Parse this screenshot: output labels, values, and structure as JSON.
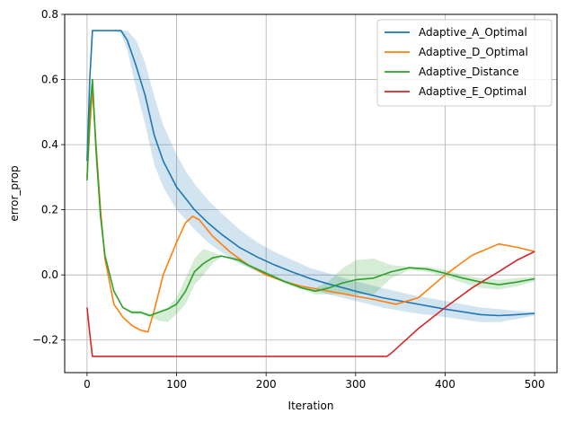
{
  "chart_data": {
    "type": "line",
    "xlabel": "Iteration",
    "ylabel": "error_prop",
    "xlim": [
      -25,
      525
    ],
    "ylim": [
      -0.3,
      0.8
    ],
    "xticks": [
      0,
      100,
      200,
      300,
      400,
      500
    ],
    "yticks": [
      -0.2,
      0.0,
      0.2,
      0.4,
      0.6,
      0.8
    ],
    "xtick_labels": [
      "0",
      "100",
      "200",
      "300",
      "400",
      "500"
    ],
    "ytick_labels": [
      "−0.2",
      "0.0",
      "0.2",
      "0.4",
      "0.6",
      "0.8"
    ],
    "grid": true,
    "legend_position": "top-right",
    "series": [
      {
        "name": "Adaptive_A_Optimal",
        "color": "#1f77b4",
        "x": [
          0,
          3,
          6,
          10,
          20,
          30,
          38,
          45,
          55,
          65,
          75,
          85,
          100,
          110,
          120,
          135,
          150,
          170,
          190,
          210,
          230,
          250,
          270,
          300,
          330,
          360,
          400,
          440,
          460,
          480,
          500
        ],
        "y": [
          0.35,
          0.6,
          0.75,
          0.75,
          0.75,
          0.75,
          0.75,
          0.72,
          0.64,
          0.55,
          0.43,
          0.35,
          0.27,
          0.235,
          0.2,
          0.16,
          0.125,
          0.085,
          0.055,
          0.03,
          0.008,
          -0.012,
          -0.028,
          -0.05,
          -0.07,
          -0.085,
          -0.105,
          -0.122,
          -0.125,
          -0.122,
          -0.118
        ],
        "band_upper": [
          0.35,
          0.6,
          0.75,
          0.75,
          0.75,
          0.75,
          0.75,
          0.75,
          0.72,
          0.65,
          0.55,
          0.46,
          0.37,
          0.32,
          0.28,
          0.23,
          0.19,
          0.14,
          0.1,
          0.07,
          0.045,
          0.02,
          0.005,
          -0.02,
          -0.04,
          -0.06,
          -0.08,
          -0.1,
          -0.105,
          -0.11,
          -0.115
        ],
        "band_lower": [
          0.35,
          0.6,
          0.75,
          0.75,
          0.75,
          0.75,
          0.74,
          0.69,
          0.57,
          0.46,
          0.34,
          0.27,
          0.2,
          0.17,
          0.14,
          0.1,
          0.07,
          0.035,
          0.01,
          -0.01,
          -0.03,
          -0.045,
          -0.06,
          -0.08,
          -0.1,
          -0.115,
          -0.13,
          -0.145,
          -0.145,
          -0.135,
          -0.125
        ]
      },
      {
        "name": "Adaptive_D_Optimal",
        "color": "#ff7f0e",
        "x": [
          0,
          3,
          6,
          10,
          15,
          20,
          30,
          40,
          50,
          60,
          68,
          75,
          85,
          100,
          110,
          118,
          125,
          140,
          160,
          180,
          200,
          220,
          240,
          260,
          280,
          300,
          320,
          345,
          370,
          400,
          430,
          460,
          480,
          500
        ],
        "y": [
          0.3,
          0.45,
          0.57,
          0.4,
          0.2,
          0.05,
          -0.09,
          -0.13,
          -0.155,
          -0.17,
          -0.175,
          -0.11,
          0.0,
          0.1,
          0.16,
          0.18,
          0.17,
          0.12,
          0.07,
          0.03,
          0.0,
          -0.02,
          -0.035,
          -0.045,
          -0.055,
          -0.065,
          -0.075,
          -0.09,
          -0.07,
          0.0,
          0.06,
          0.095,
          0.085,
          0.072
        ]
      },
      {
        "name": "Adaptive_Distance",
        "color": "#2ca02c",
        "x": [
          0,
          3,
          6,
          10,
          15,
          20,
          30,
          40,
          50,
          60,
          70,
          80,
          90,
          100,
          110,
          120,
          130,
          140,
          150,
          160,
          170,
          180,
          200,
          220,
          240,
          255,
          270,
          285,
          300,
          320,
          340,
          360,
          380,
          400,
          420,
          440,
          460,
          480,
          500
        ],
        "y": [
          0.29,
          0.5,
          0.6,
          0.38,
          0.18,
          0.06,
          -0.05,
          -0.1,
          -0.115,
          -0.115,
          -0.125,
          -0.115,
          -0.105,
          -0.09,
          -0.05,
          0.01,
          0.035,
          0.052,
          0.058,
          0.052,
          0.045,
          0.03,
          0.005,
          -0.02,
          -0.04,
          -0.05,
          -0.04,
          -0.025,
          -0.015,
          -0.01,
          0.01,
          0.022,
          0.018,
          0.005,
          -0.01,
          -0.022,
          -0.03,
          -0.022,
          -0.012
        ],
        "band_upper": [
          0.29,
          0.5,
          0.6,
          0.38,
          0.18,
          0.06,
          -0.05,
          -0.1,
          -0.11,
          -0.11,
          -0.12,
          -0.11,
          -0.1,
          -0.07,
          -0.01,
          0.05,
          0.08,
          0.07,
          0.06,
          0.055,
          0.05,
          0.035,
          0.01,
          -0.015,
          -0.035,
          -0.04,
          -0.02,
          0.02,
          0.045,
          0.05,
          0.03,
          0.025,
          0.025,
          0.015,
          0.0,
          -0.01,
          -0.015,
          -0.01,
          -0.005
        ],
        "band_lower": [
          0.29,
          0.5,
          0.6,
          0.38,
          0.18,
          0.06,
          -0.05,
          -0.1,
          -0.12,
          -0.12,
          -0.13,
          -0.14,
          -0.145,
          -0.12,
          -0.09,
          -0.03,
          0.0,
          0.035,
          0.055,
          0.048,
          0.04,
          0.025,
          0.0,
          -0.025,
          -0.045,
          -0.06,
          -0.06,
          -0.06,
          -0.06,
          -0.06,
          -0.01,
          0.015,
          0.01,
          -0.005,
          -0.025,
          -0.04,
          -0.045,
          -0.035,
          -0.02
        ]
      },
      {
        "name": "Adaptive_E_Optimal",
        "color": "#d62728",
        "x": [
          0,
          3,
          6,
          10,
          50,
          100,
          200,
          300,
          335,
          340,
          350,
          370,
          400,
          430,
          460,
          480,
          500
        ],
        "y": [
          -0.1,
          -0.18,
          -0.25,
          -0.25,
          -0.25,
          -0.25,
          -0.25,
          -0.25,
          -0.25,
          -0.24,
          -0.215,
          -0.165,
          -0.1,
          -0.04,
          0.01,
          0.045,
          0.072
        ]
      }
    ]
  }
}
